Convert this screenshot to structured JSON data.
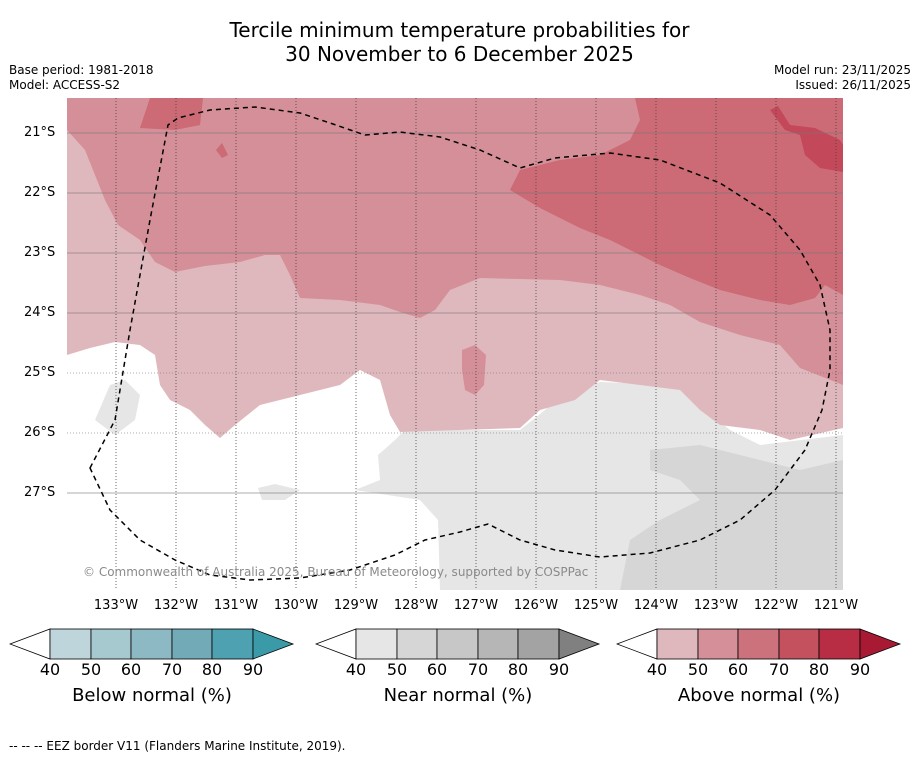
{
  "title": {
    "line1": "Tercile minimum temperature probabilities for",
    "line2": "30 November to 6 December 2025"
  },
  "meta": {
    "base_period": "Base period: 1981-2018",
    "model": "Model: ACCESS-S2",
    "model_run": "Model run: 23/11/2025",
    "issued": "Issued: 26/11/2025"
  },
  "map": {
    "lat_labels": [
      "21°S",
      "22°S",
      "23°S",
      "24°S",
      "25°S",
      "26°S",
      "27°S"
    ],
    "lon_labels": [
      "133°W",
      "132°W",
      "131°W",
      "130°W",
      "129°W",
      "128°W",
      "127°W",
      "126°W",
      "125°W",
      "124°W",
      "123°W",
      "122°W",
      "121°W"
    ],
    "copyright": "© Commonwealth of Australia 2025, Bureau of Meteorology, supported by COSPPac"
  },
  "legends": [
    {
      "title": "Below normal (%)",
      "ticks": [
        "40",
        "50",
        "60",
        "70",
        "80",
        "90"
      ],
      "colors": [
        "#bdd5db",
        "#a6c9cf",
        "#8cb9c3",
        "#72aab7",
        "#4ea1b0",
        "#3a9aa8"
      ]
    },
    {
      "title": "Near normal (%)",
      "ticks": [
        "40",
        "50",
        "60",
        "70",
        "80",
        "90"
      ],
      "colors": [
        "#e6e6e6",
        "#d6d6d6",
        "#c7c7c7",
        "#b6b6b6",
        "#a3a3a3",
        "#808080"
      ]
    },
    {
      "title": "Above normal (%)",
      "ticks": [
        "40",
        "50",
        "60",
        "70",
        "80",
        "90"
      ],
      "colors": [
        "#dfb8bd",
        "#d58f98",
        "#cc727c",
        "#c3525e",
        "#b92d44",
        "#a81a34"
      ]
    }
  ],
  "colors": {
    "above40": "#dfb8bd",
    "above50": "#d58f98",
    "above60": "#cc6a75",
    "above70": "#c2485a",
    "near40": "#e6e6e6",
    "near50": "#d6d6d6"
  },
  "footer": "--  --  -- EEZ border V11 (Flanders Marine Institute, 2019)."
}
